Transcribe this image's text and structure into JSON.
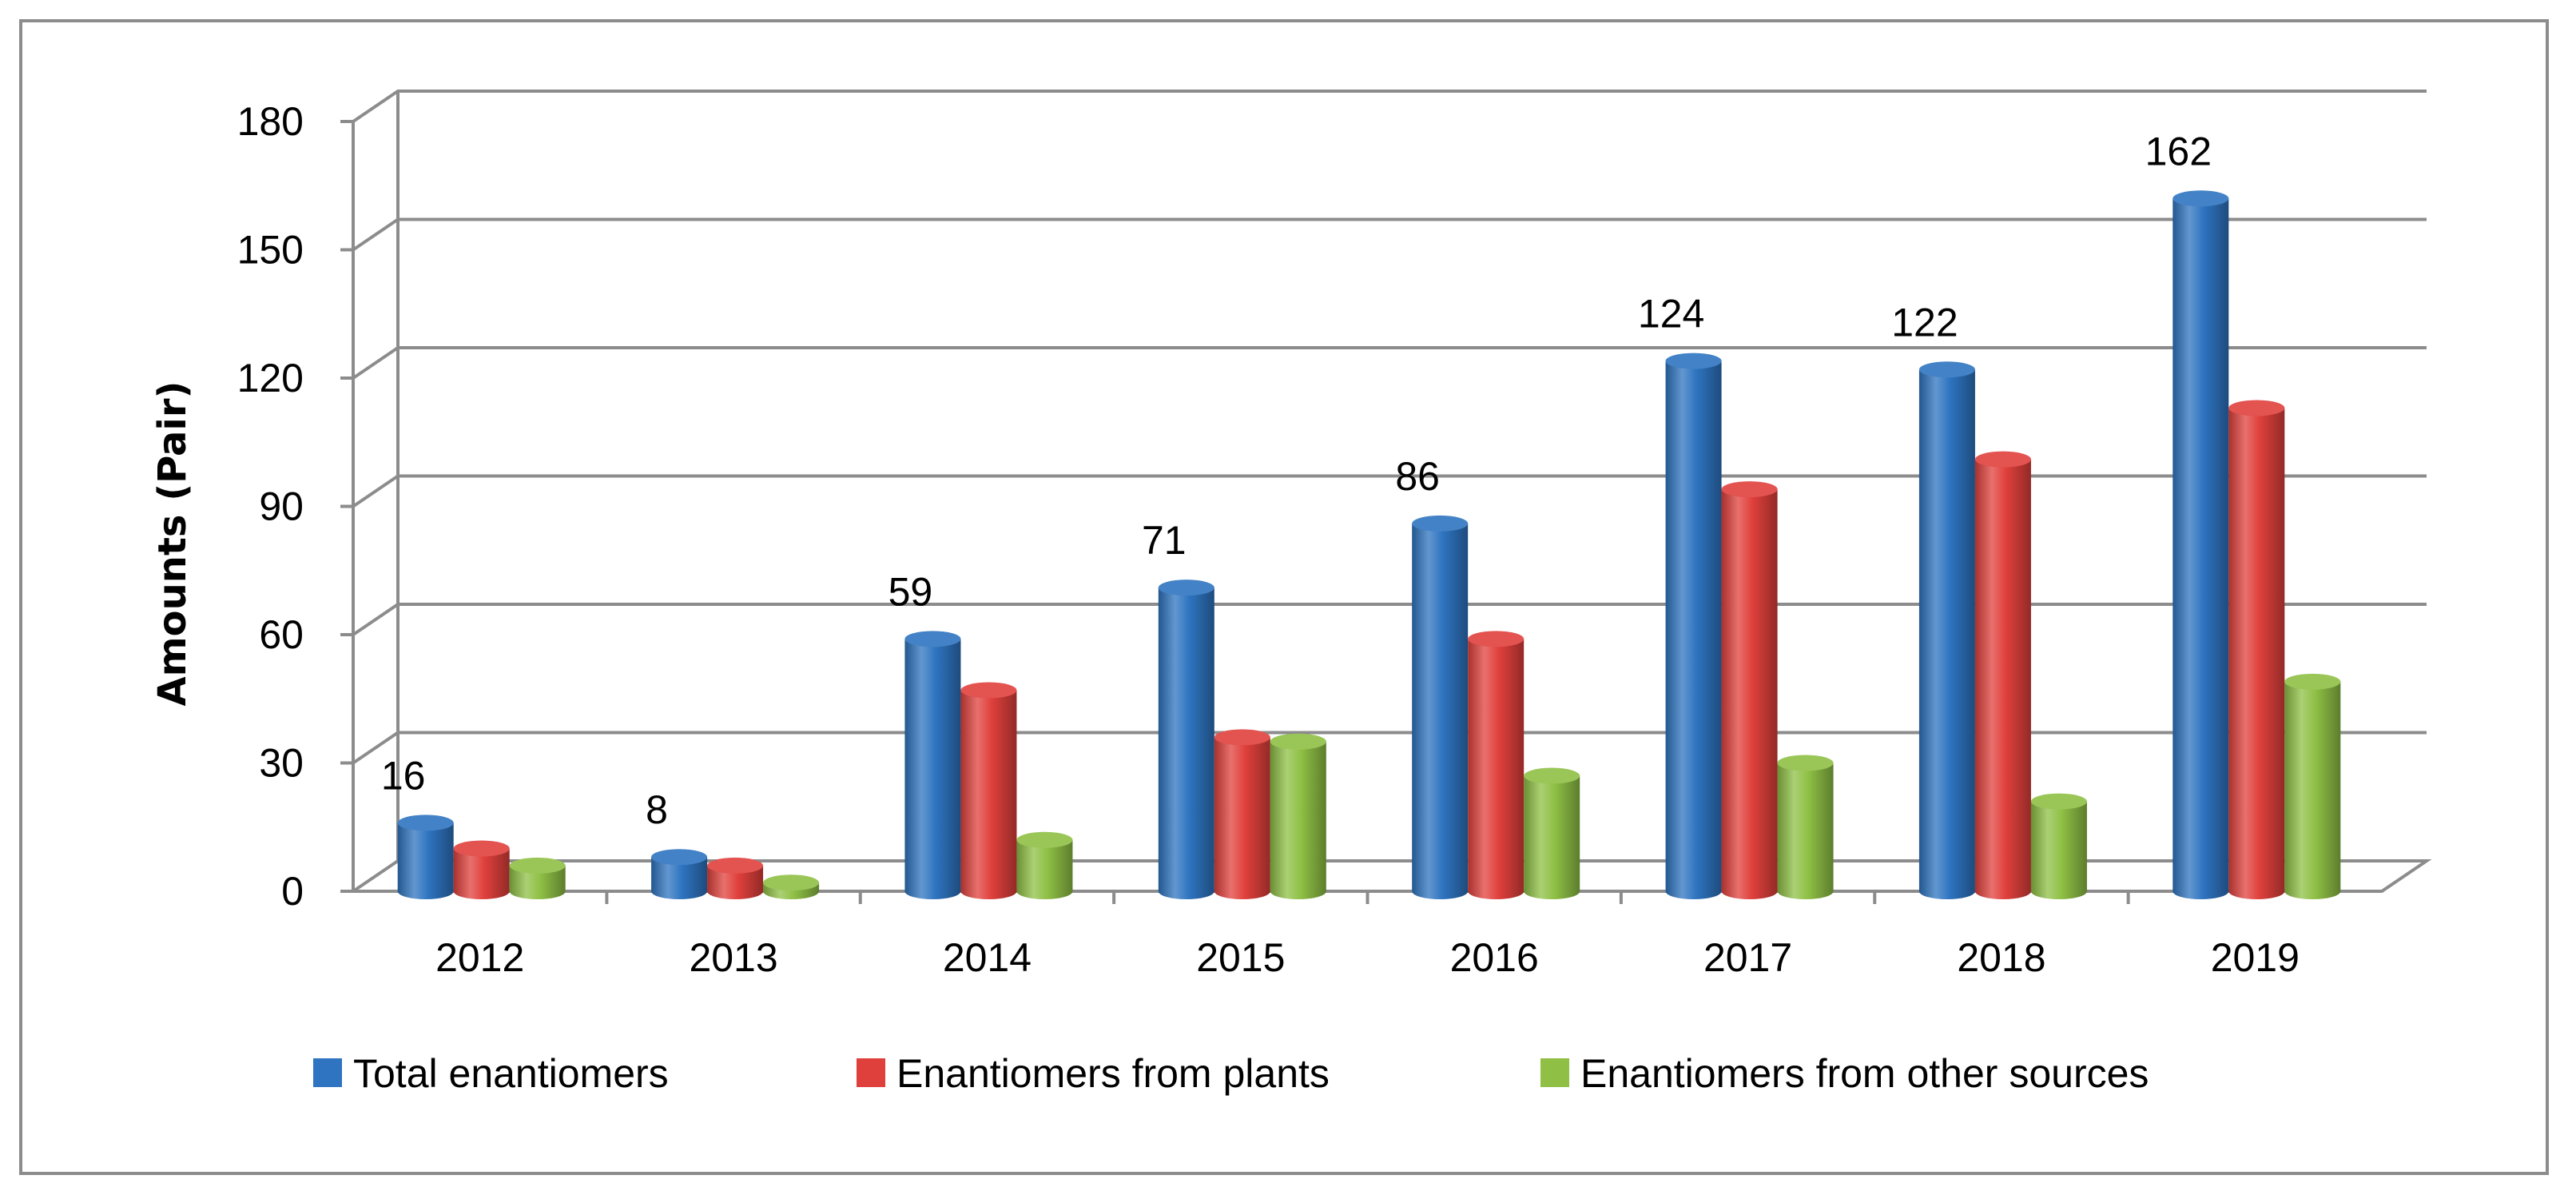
{
  "chart_data": {
    "type": "bar",
    "title": "",
    "xlabel": "",
    "ylabel": "Amounts (Pair)",
    "ylim": [
      0,
      180
    ],
    "yticks": [
      0,
      30,
      60,
      90,
      120,
      150,
      180
    ],
    "categories": [
      "2012",
      "2013",
      "2014",
      "2015",
      "2016",
      "2017",
      "2018",
      "2019"
    ],
    "series": [
      {
        "name": "Total enantiomers",
        "color": "#2e74c0",
        "values": [
          16,
          8,
          59,
          71,
          86,
          124,
          122,
          162
        ]
      },
      {
        "name": "Enantiomers from plants",
        "color": "#e0403c",
        "values": [
          10,
          6,
          47,
          36,
          59,
          94,
          101,
          113
        ]
      },
      {
        "name": "Enantiomers from other sources",
        "color": "#8fc045",
        "values": [
          6,
          2,
          12,
          35,
          27,
          30,
          21,
          49
        ]
      }
    ],
    "data_labels": {
      "series": "Total enantiomers",
      "values": [
        "16",
        "8",
        "59",
        "71",
        "86",
        "124",
        "122",
        "162"
      ]
    },
    "legend_position": "bottom",
    "grid": true
  }
}
